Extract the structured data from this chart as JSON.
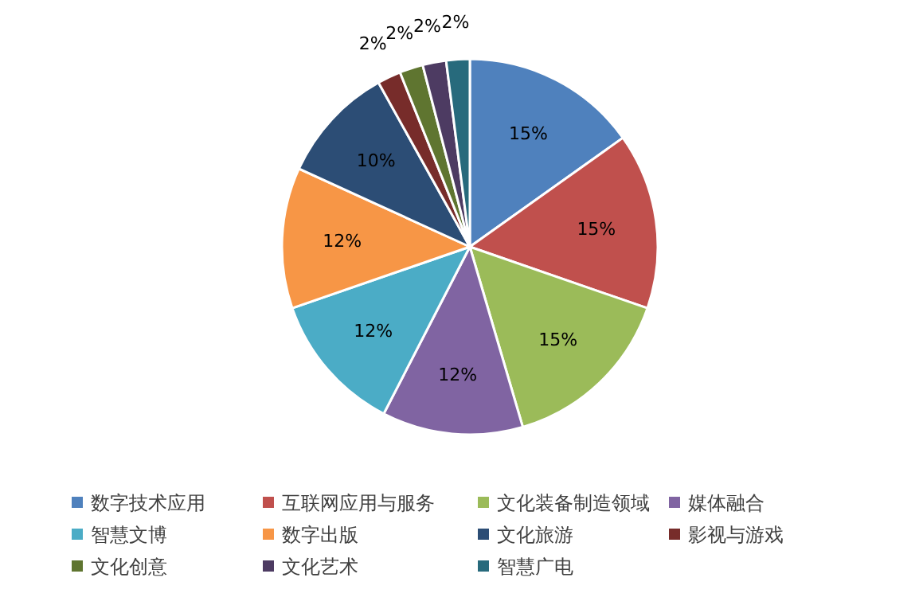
{
  "chart_data": {
    "type": "pie",
    "categories": [
      "数字技术应用",
      "互联网应用与服务",
      "文化装备制造领域",
      "媒体融合",
      "智慧文博",
      "数字出版",
      "文化旅游",
      "影视与游戏",
      "文化创意",
      "文化艺术",
      "智慧广电"
    ],
    "values": [
      15,
      15,
      15,
      12,
      12,
      12,
      10,
      2,
      2,
      2,
      2
    ],
    "value_labels": [
      "15%",
      "15%",
      "15%",
      "12%",
      "12%",
      "12%",
      "10%",
      "2%",
      "2%",
      "2%",
      "2%"
    ],
    "colors": [
      "#4f81bd",
      "#c0504d",
      "#9bbb59",
      "#8064a2",
      "#4bacc6",
      "#f79646",
      "#2c4d75",
      "#772c2a",
      "#5f7530",
      "#4d3b62",
      "#276a7c"
    ],
    "legend": "bottom"
  }
}
